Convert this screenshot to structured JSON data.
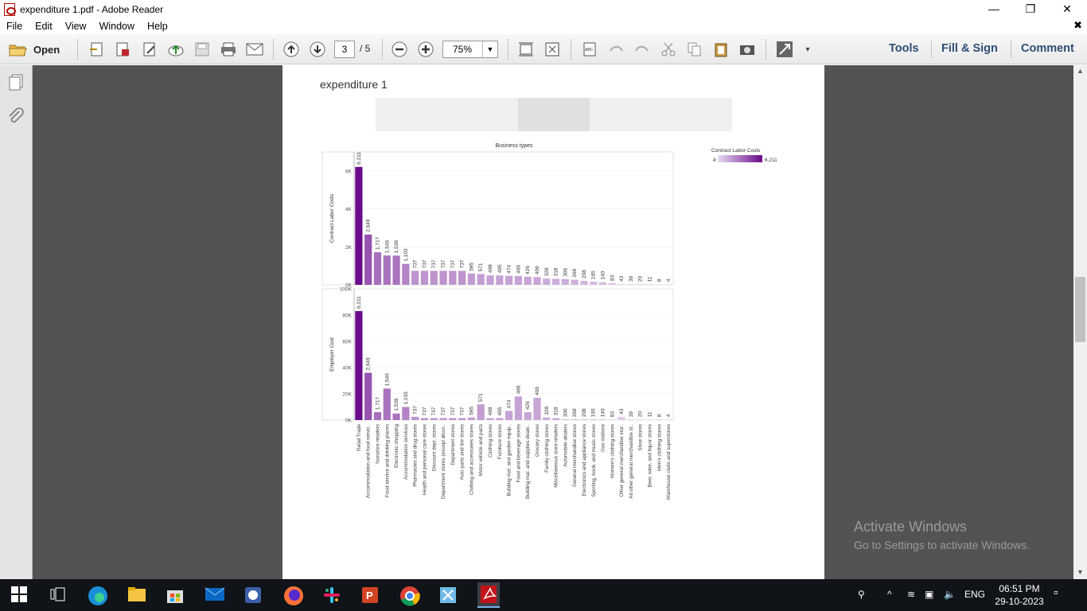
{
  "window": {
    "title": "expenditure 1.pdf - Adobe Reader"
  },
  "menu": {
    "file": "File",
    "edit": "Edit",
    "view": "View",
    "window": "Window",
    "help": "Help"
  },
  "toolbar": {
    "open_label": "Open",
    "current_page": "3",
    "page_total": "/ 5",
    "zoom": "75%",
    "tools": "Tools",
    "fill_sign": "Fill & Sign",
    "comment": "Comment"
  },
  "document": {
    "heading": "expenditure 1"
  },
  "watermark": {
    "line1": "Activate Windows",
    "line2": "Go to Settings to activate Windows."
  },
  "system": {
    "lang": "ENG",
    "time": "06:51 PM",
    "date": "29-10-2023"
  },
  "colors": {
    "bar_dark": "#6a0a8c",
    "bar_light": "#e8dcf0",
    "accent": "#2e4d74"
  },
  "chart_data": {
    "type": "bar",
    "title": "Business types",
    "legend": {
      "title": "Contract Labor Costs",
      "min": "4",
      "max": "6,211"
    },
    "categories": [
      "Retail Trade",
      "Accommodation and food servic..",
      "Nonstore retailers",
      "Food service and drinking places",
      "Electronic shopping",
      "Accommodation services",
      "Pharmacies and drug stores",
      "Health and personal care stores",
      "Discount dept. stores",
      "Department stores (except disco..",
      "Department stores",
      "Auto parts and tire stores",
      "Clothing and accessories stores",
      "Motor vehicle and parts",
      "Clothing stores",
      "Furniture stores",
      "Building mat. and garden equip..",
      "Food and beverage stores",
      "Building mat. and supplies deale..",
      "Grocery stores",
      "Family clothing stores",
      "Miscellaneous store retailers",
      "Automobile dealers",
      "General merchandise stores",
      "Electronics and appliance stores",
      "Sporting, book, and music stores",
      "Gas stations",
      "Women's clothing stores",
      "Other general merchandise stor..",
      "All other general merchandise st..",
      "Shoe stores",
      "Beer, wine, and liquor stores",
      "Men's clothing stores",
      "Warehouse clubs and superstores"
    ],
    "contract_labels": [
      "6,211",
      "2,649",
      "1,717",
      "1,546",
      "1,539",
      "1,103",
      "737",
      "737",
      "737",
      "737",
      "737",
      "737",
      "595",
      "571",
      "498",
      "495",
      "474",
      "466",
      "426",
      "409",
      "328",
      "318",
      "306",
      "269",
      "208",
      "165",
      "140",
      "83",
      "43",
      "39",
      "20",
      "11",
      "8",
      "4"
    ],
    "series": [
      {
        "name": "Contract Labor Costs",
        "ylabel": "Contract Labor Costs",
        "ylim": [
          0,
          7000
        ],
        "ticks": [
          "0K",
          "2K",
          "4K",
          "6K"
        ],
        "tick_values": [
          0,
          2000,
          4000,
          6000
        ],
        "values": [
          6211,
          2649,
          1717,
          1546,
          1539,
          1103,
          737,
          737,
          737,
          737,
          737,
          737,
          595,
          571,
          498,
          495,
          474,
          466,
          426,
          409,
          328,
          318,
          306,
          269,
          208,
          165,
          140,
          83,
          43,
          39,
          20,
          11,
          8,
          4
        ]
      },
      {
        "name": "Employer Cost",
        "ylabel": "Employer Cost",
        "ylim": [
          0,
          100000
        ],
        "ticks": [
          "0K",
          "20K",
          "40K",
          "60K",
          "80K",
          "100K"
        ],
        "tick_values": [
          0,
          20000,
          40000,
          60000,
          80000,
          100000
        ],
        "values": [
          83000,
          36000,
          6000,
          24000,
          5000,
          10000,
          2500,
          1500,
          1500,
          1500,
          1500,
          1500,
          2000,
          12000,
          1500,
          1500,
          7000,
          18000,
          6000,
          17000,
          2000,
          1500,
          500,
          500,
          500,
          400,
          400,
          300,
          2500,
          300,
          100,
          100,
          100,
          100
        ]
      }
    ],
    "xlabel": "",
    "grid": true
  }
}
